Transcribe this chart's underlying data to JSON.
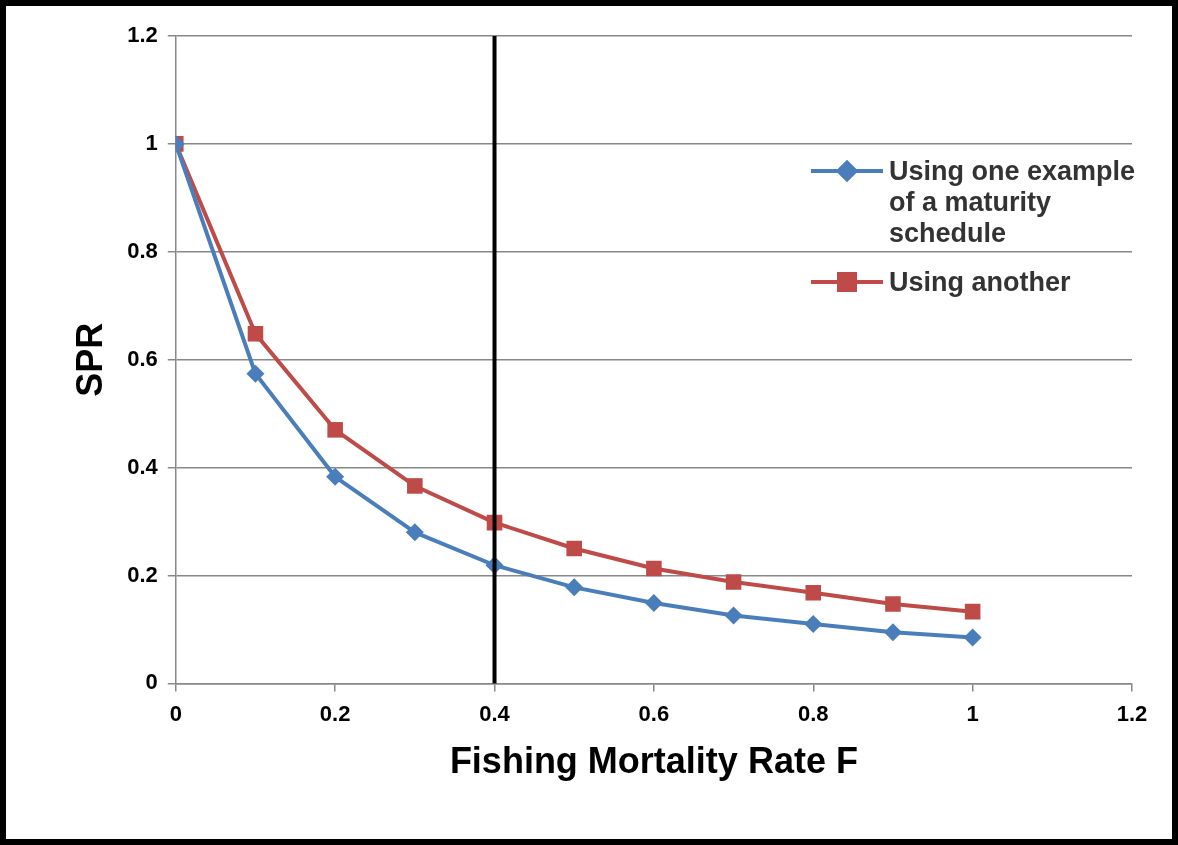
{
  "chart_data": {
    "type": "line",
    "xlabel": "Fishing Mortality Rate F",
    "ylabel": "SPR",
    "x": [
      0,
      0.1,
      0.2,
      0.3,
      0.4,
      0.5,
      0.6,
      0.7,
      0.8,
      0.9,
      1
    ],
    "series": [
      {
        "name": "Using one example of a maturity schedule",
        "color": "#4a7ebb",
        "marker": "diamond",
        "values": [
          1,
          0.574,
          0.383,
          0.28,
          0.219,
          0.178,
          0.149,
          0.126,
          0.11,
          0.095,
          0.085
        ]
      },
      {
        "name": "Using another",
        "color": "#be4b48",
        "marker": "square",
        "values": [
          1,
          0.648,
          0.47,
          0.366,
          0.298,
          0.25,
          0.213,
          0.188,
          0.168,
          0.147,
          0.133
        ]
      }
    ],
    "xlim": [
      0,
      1.2
    ],
    "xticks": [
      0,
      0.2,
      0.4,
      0.6,
      0.8,
      1,
      1.2
    ],
    "ylim": [
      0,
      1.2
    ],
    "yticks": [
      0,
      0.2,
      0.4,
      0.6,
      0.8,
      1,
      1.2
    ],
    "ref_lines": [
      {
        "axis": "x",
        "value": 0.4,
        "color": "#000000"
      }
    ],
    "grid": "y",
    "legend": "top right",
    "line_style": "solid"
  }
}
